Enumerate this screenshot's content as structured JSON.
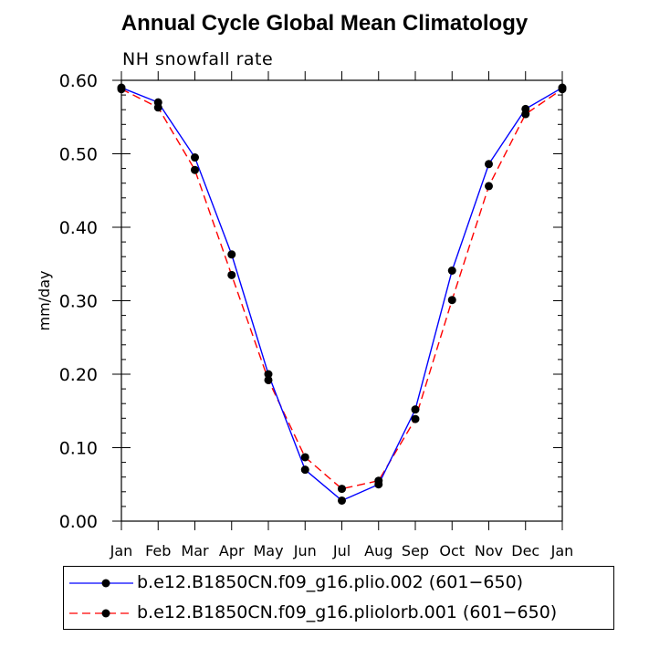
{
  "chart_data": {
    "type": "line",
    "title": "Annual Cycle Global Mean Climatology",
    "subtitle": "NH snowfall rate",
    "ylabel": "mm/day",
    "xlabel": "",
    "categories": [
      "Jan",
      "Feb",
      "Mar",
      "Apr",
      "May",
      "Jun",
      "Jul",
      "Aug",
      "Sep",
      "Oct",
      "Nov",
      "Dec",
      "Jan"
    ],
    "ylim": [
      0.0,
      0.6
    ],
    "yticks": [
      "0.00",
      "0.10",
      "0.20",
      "0.30",
      "0.40",
      "0.50",
      "0.60"
    ],
    "series": [
      {
        "name": "b.e12.B1850CN.f09_g16.plio.002 (601−650)",
        "color": "#0000ff",
        "dash": "solid",
        "values": [
          0.59,
          0.57,
          0.495,
          0.363,
          0.2,
          0.07,
          0.028,
          0.05,
          0.152,
          0.341,
          0.486,
          0.561,
          0.59
        ]
      },
      {
        "name": "b.e12.B1850CN.f09_g16.pliolorb.001 (601−650)",
        "color": "#ff0000",
        "dash": "dashed",
        "values": [
          0.588,
          0.563,
          0.478,
          0.335,
          0.192,
          0.087,
          0.044,
          0.055,
          0.139,
          0.301,
          0.456,
          0.554,
          0.588
        ]
      }
    ],
    "legend_position": "bottom",
    "grid": false
  }
}
